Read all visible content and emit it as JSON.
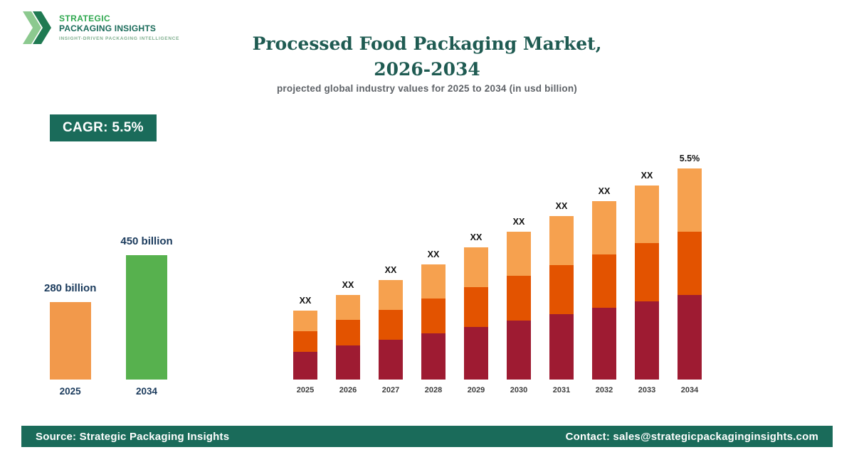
{
  "logo": {
    "line1": "STRATEGIC",
    "line2": "PACKAGING INSIGHTS",
    "tagline": "INSIGHT-DRIVEN PACKAGING INTELLIGENCE"
  },
  "header": {
    "title_line1": "Processed Food Packaging Market,",
    "title_line2": "2026-2034",
    "subtitle": "projected global industry values for 2025 to 2034 (in usd billion)"
  },
  "cagr_badge": "CAGR: 5.5%",
  "footer": {
    "source": "Source: Strategic Packaging Insights",
    "contact": "Contact: sales@strategicpackaginginsights.com"
  },
  "colors": {
    "brand_green": "#1A6B5A",
    "logo_green": "#2FA84F",
    "title_text": "#1F5B52",
    "subtitle_gray": "#5F6368",
    "label_navy": "#1A3A5C",
    "segment_maroon": "#9E1B32",
    "segment_orange": "#E35300",
    "segment_light_orange": "#F6A14F",
    "summary_orange": "#F2994B",
    "summary_green": "#57B14E"
  },
  "chart_data": [
    {
      "type": "bar",
      "name": "summary",
      "title": "2025 vs 2034 market size",
      "categories": [
        "2025",
        "2034"
      ],
      "values": [
        280,
        450
      ],
      "value_labels": [
        "280 billion",
        "450 billion"
      ],
      "colors": [
        "#F2994B",
        "#57B14E"
      ],
      "ylabel": "usd billion",
      "ylim": [
        0,
        450
      ],
      "grid": false,
      "legend": "none"
    },
    {
      "type": "bar",
      "stacked": true,
      "name": "main",
      "title": "Processed Food Packaging Market, 2026-2034",
      "categories": [
        "2025",
        "2026",
        "2027",
        "2028",
        "2029",
        "2030",
        "2031",
        "2032",
        "2033",
        "2034"
      ],
      "series": [
        {
          "name": "tier-1-bottom",
          "color": "#9E1B32",
          "values": [
            40,
            49,
            57,
            66,
            76,
            85,
            94,
            103,
            112,
            121
          ]
        },
        {
          "name": "tier-2-middle",
          "color": "#E35300",
          "values": [
            30,
            37,
            43,
            50,
            57,
            64,
            70,
            77,
            84,
            91
          ]
        },
        {
          "name": "tier-3-top",
          "color": "#F6A14F",
          "values": [
            30,
            36,
            43,
            49,
            57,
            63,
            70,
            77,
            83,
            91
          ]
        }
      ],
      "bar_labels": [
        "XX",
        "XX",
        "XX",
        "XX",
        "XX",
        "XX",
        "XX",
        "XX",
        "XX",
        "5.5%"
      ],
      "ylabel": "usd billion (values masked as XX)",
      "grid": false,
      "legend": "none"
    }
  ]
}
